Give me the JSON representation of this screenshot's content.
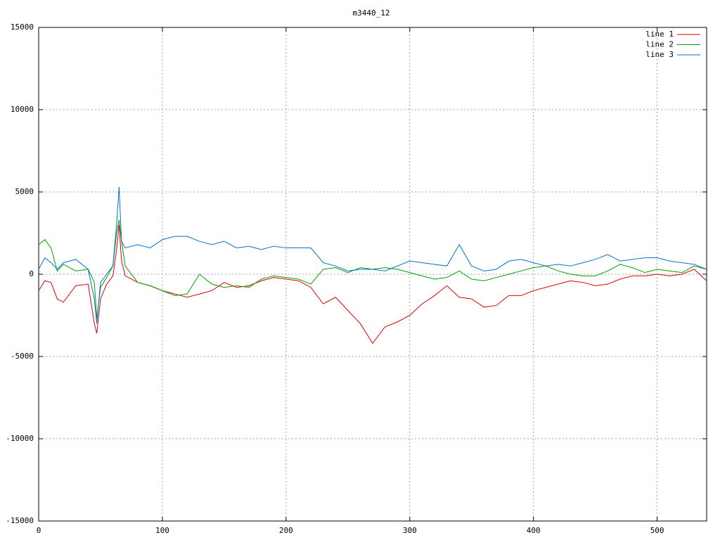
{
  "chart_data": {
    "type": "line",
    "title": "m3440_12",
    "x": [
      0,
      5,
      10,
      15,
      20,
      30,
      40,
      45,
      47,
      50,
      55,
      60,
      63,
      65,
      67,
      70,
      80,
      90,
      100,
      110,
      120,
      130,
      140,
      150,
      160,
      170,
      180,
      190,
      200,
      210,
      220,
      230,
      240,
      250,
      260,
      270,
      280,
      290,
      300,
      310,
      320,
      330,
      340,
      350,
      360,
      370,
      380,
      390,
      400,
      410,
      420,
      430,
      440,
      450,
      460,
      470,
      480,
      490,
      500,
      510,
      520,
      530,
      540
    ],
    "series": [
      {
        "name": "line 1",
        "color": "#e00000",
        "values": [
          -1000,
          -400,
          -500,
          -1500,
          -1700,
          -700,
          -600,
          -3000,
          -3600,
          -1500,
          -600,
          -100,
          1500,
          3000,
          800,
          -100,
          -500,
          -700,
          -1000,
          -1200,
          -1400,
          -1200,
          -1000,
          -500,
          -800,
          -700,
          -400,
          -200,
          -300,
          -400,
          -800,
          -1800,
          -1400,
          -2200,
          -3000,
          -4200,
          -3200,
          -2900,
          -2500,
          -1800,
          -1300,
          -700,
          -1400,
          -1500,
          -2000,
          -1900,
          -1300,
          -1300,
          -1000,
          -800,
          -600,
          -400,
          -500,
          -700,
          -600,
          -300,
          -100,
          -100,
          0,
          -100,
          0,
          300,
          -400
        ]
      },
      {
        "name": "line 2",
        "color": "#00a000",
        "values": [
          1800,
          2100,
          1600,
          200,
          600,
          200,
          300,
          -500,
          -2700,
          -800,
          -200,
          500,
          2500,
          3300,
          2000,
          500,
          -500,
          -700,
          -1000,
          -1300,
          -1200,
          0,
          -600,
          -800,
          -700,
          -800,
          -300,
          -100,
          -200,
          -300,
          -600,
          300,
          400,
          100,
          400,
          300,
          400,
          300,
          100,
          -100,
          -300,
          -200,
          200,
          -300,
          -400,
          -200,
          0,
          200,
          400,
          500,
          200,
          0,
          -100,
          -100,
          200,
          600,
          400,
          100,
          300,
          200,
          100,
          500,
          300
        ]
      },
      {
        "name": "line 3",
        "color": "#0070d0",
        "values": [
          300,
          1000,
          700,
          300,
          700,
          900,
          300,
          -1500,
          -3000,
          -500,
          0,
          500,
          3000,
          5300,
          2000,
          1600,
          1800,
          1600,
          2100,
          2300,
          2300,
          2000,
          1800,
          2000,
          1600,
          1700,
          1500,
          1700,
          1600,
          1600,
          1600,
          700,
          500,
          200,
          300,
          300,
          200,
          500,
          800,
          700,
          600,
          500,
          1800,
          500,
          200,
          300,
          800,
          900,
          700,
          500,
          600,
          500,
          700,
          900,
          1200,
          800,
          900,
          1000,
          1000,
          800,
          700,
          600,
          300
        ]
      }
    ],
    "xlim": [
      0,
      540
    ],
    "ylim": [
      -15000,
      15000
    ],
    "xticks": [
      0,
      100,
      200,
      300,
      400,
      500
    ],
    "yticks": [
      -15000,
      -10000,
      -5000,
      0,
      5000,
      10000,
      15000
    ],
    "grid": true,
    "legend": "top-right"
  }
}
